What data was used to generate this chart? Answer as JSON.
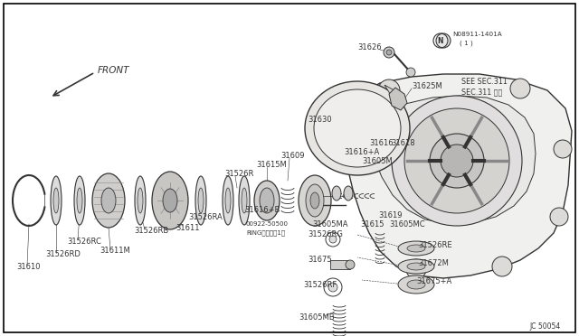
{
  "background_color": "#ffffff",
  "border_color": "#000000",
  "fig_width": 6.4,
  "fig_height": 3.72,
  "dpi": 100,
  "diagram_code": "JC 50054",
  "front_label": "FRONT",
  "see_sec_line1": "SEE SEC.311",
  "see_sec_line2": "SEC.311 参照",
  "nut_label_line1": "N08911-1401A",
  "nut_label_line2": "( 1 )",
  "ring_label_line1": "00922-50500",
  "ring_label_line2": "RINGリング（1）",
  "lc": "#333333",
  "lw": 0.7
}
